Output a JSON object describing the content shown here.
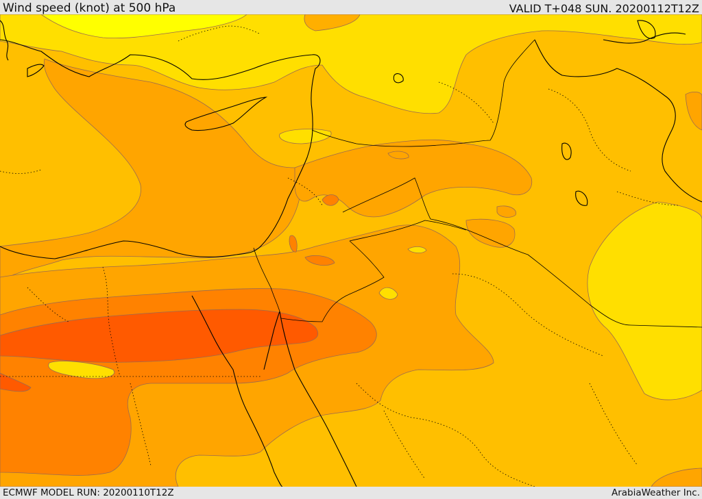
{
  "header": {
    "title": "Wind speed (knot) at 500 hPa",
    "valid": "VALID T+048 SUN. 20200112T12Z"
  },
  "footer": {
    "model_run": "ECMWF MODEL RUN: 20200110T12Z",
    "brand": "ArabiaWeather Inc."
  },
  "colors": {
    "level_1": "#ffff00",
    "level_2": "#ffdf00",
    "level_3": "#ffbf00",
    "level_4": "#ff9f00",
    "level_5": "#ff7f00",
    "level_6": "#ff5f00",
    "coastline": "#000000",
    "contour": "#7a4a6a"
  }
}
